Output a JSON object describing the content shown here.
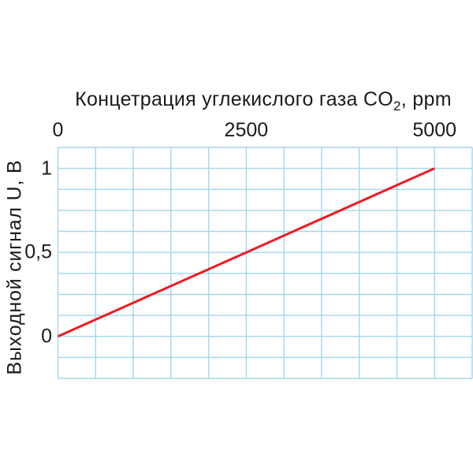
{
  "colors": {
    "background": "#ffffff",
    "text": "#1b1b1b",
    "grid": "#a3d7ec",
    "line": "#ee1b22"
  },
  "chart_data": {
    "type": "line",
    "title": {
      "prefix": "Концетрация углекислого газа CO",
      "subscript": "2",
      "suffix": ", ppm",
      "full": "Концетрация углекислого газа CO2, ppm"
    },
    "title_position": "top",
    "ylabel": "Выходной сигнал U, В",
    "x_axis": {
      "min": 0,
      "max": 5500,
      "ticks": [
        {
          "value": 0,
          "label": "0"
        },
        {
          "value": 2500,
          "label": "2500"
        },
        {
          "value": 5000,
          "label": "5000"
        }
      ]
    },
    "y_axis": {
      "min": -0.25,
      "max": 1.125,
      "ticks": [
        {
          "value": 1,
          "label": "1"
        },
        {
          "value": 0.5,
          "label": "0,5"
        },
        {
          "value": 0,
          "label": "0"
        }
      ]
    },
    "grid": {
      "cols": 11,
      "rows": 11,
      "color": "#a3d7ec",
      "visible": true
    },
    "legend": "none",
    "series": [
      {
        "name": "output-signal",
        "color": "#ee1b22",
        "width": 3,
        "points": [
          {
            "x": 0,
            "y": 0
          },
          {
            "x": 2500,
            "y": 0.5
          },
          {
            "x": 5000,
            "y": 1
          }
        ]
      }
    ]
  }
}
